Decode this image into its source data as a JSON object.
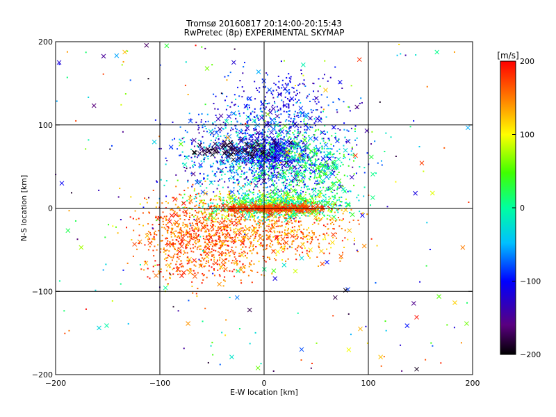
{
  "chart_data": {
    "type": "scatter",
    "title": "Tromsø 20160817 20:14:00-20:15:43",
    "subtitle": "RwPretec (8p) EXPERIMENTAL SKYMAP",
    "xlabel": "E-W location [km]",
    "ylabel": "N-S location [km]",
    "xlim": [
      -200,
      200
    ],
    "ylim": [
      -200,
      200
    ],
    "xticks": [
      -200,
      -100,
      0,
      100,
      200
    ],
    "yticks": [
      -200,
      -100,
      0,
      100,
      200
    ],
    "grid": true,
    "colorbar": {
      "label": "[m/s]",
      "range": [
        -200,
        200
      ],
      "ticks": [
        200,
        100,
        0,
        -100,
        -200
      ],
      "colormap": "rainbow (black→purple→blue→cyan→green→yellow→red)"
    },
    "marker_types": [
      "dot",
      "x"
    ],
    "clusters": [
      {
        "region": "north-central",
        "x_center": 0,
        "y_center": 65,
        "x_spread": 40,
        "y_spread": 25,
        "velocity_range": [
          -150,
          0
        ]
      },
      {
        "region": "near-origin band",
        "x_center": 10,
        "y_center": 3,
        "x_spread": 35,
        "y_spread": 8,
        "velocity_range": [
          -50,
          100
        ]
      },
      {
        "region": "south-west",
        "x_center": -60,
        "y_center": -35,
        "x_spread": 30,
        "y_spread": 25,
        "velocity_range": [
          120,
          200
        ]
      },
      {
        "region": "origin line",
        "x_center": 10,
        "y_center": 0,
        "x_spread": 25,
        "y_spread": 2,
        "velocity_range": [
          150,
          200
        ]
      },
      {
        "region": "black band",
        "x_center": -25,
        "y_center": 70,
        "x_spread": 20,
        "y_spread": 5,
        "velocity_range": [
          -200,
          -170
        ]
      }
    ]
  },
  "colors": {
    "background": "#ffffff",
    "axes": "#000000"
  }
}
